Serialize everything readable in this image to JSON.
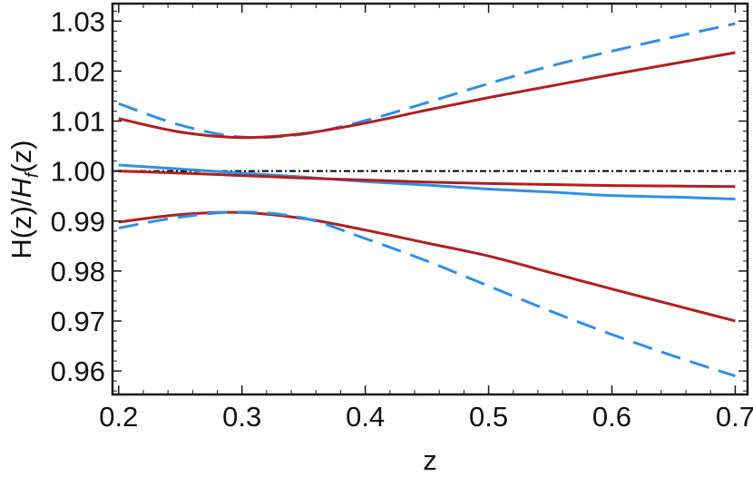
{
  "chart_data": {
    "type": "line",
    "xlabel": "z",
    "ylabel": {
      "prefix": "H(z)/",
      "italic": "H",
      "sub": "f",
      "suffix": "(z)"
    },
    "xlim": [
      0.195,
      0.71
    ],
    "ylim": [
      0.9553,
      1.0335
    ],
    "xticks": [
      0.2,
      0.3,
      0.4,
      0.5,
      0.6,
      0.7
    ],
    "xtick_labels": [
      "0.2",
      "0.3",
      "0.4",
      "0.5",
      "0.6",
      "0.7"
    ],
    "yticks": [
      0.96,
      0.97,
      0.98,
      0.99,
      1.0,
      1.01,
      1.02,
      1.03
    ],
    "ytick_labels": [
      "0.96",
      "0.97",
      "0.98",
      "0.99",
      "1.00",
      "1.01",
      "1.02",
      "1.03"
    ],
    "grid": false,
    "reference_line": {
      "y": 1.0,
      "color": "#000000",
      "style": "dashdot"
    },
    "series": [
      {
        "color": "#2f8fe8",
        "style": "dashed",
        "x": [
          0.2,
          0.25,
          0.3,
          0.35,
          0.4,
          0.45,
          0.5,
          0.55,
          0.6,
          0.65,
          0.7
        ],
        "y": [
          1.0135,
          1.0092,
          1.0068,
          1.0074,
          1.0101,
          1.0137,
          1.0175,
          1.021,
          1.024,
          1.0268,
          1.0295
        ]
      },
      {
        "color": "#b11f1f",
        "style": "solid",
        "x": [
          0.2,
          0.25,
          0.3,
          0.35,
          0.4,
          0.45,
          0.5,
          0.55,
          0.6,
          0.65,
          0.7
        ],
        "y": [
          1.0105,
          1.0078,
          1.0067,
          1.0075,
          1.0096,
          1.0122,
          1.0147,
          1.017,
          1.0193,
          1.0215,
          1.0237
        ]
      },
      {
        "color": "#2f8fe8",
        "style": "solid",
        "x": [
          0.2,
          0.25,
          0.3,
          0.35,
          0.4,
          0.45,
          0.5,
          0.55,
          0.6,
          0.65,
          0.7
        ],
        "y": [
          1.0012,
          1.0004,
          0.9996,
          0.9988,
          0.9979,
          0.9972,
          0.9964,
          0.9958,
          0.9951,
          0.9948,
          0.9944
        ]
      },
      {
        "color": "#b11f1f",
        "style": "solid",
        "x": [
          0.2,
          0.25,
          0.3,
          0.35,
          0.4,
          0.45,
          0.5,
          0.55,
          0.6,
          0.65,
          0.7
        ],
        "y": [
          1.0,
          0.9996,
          0.9991,
          0.9986,
          0.9982,
          0.9978,
          0.9975,
          0.9973,
          0.9971,
          0.997,
          0.9969
        ]
      },
      {
        "color": "#b11f1f",
        "style": "solid",
        "x": [
          0.2,
          0.25,
          0.3,
          0.35,
          0.4,
          0.45,
          0.5,
          0.55,
          0.6,
          0.65,
          0.7
        ],
        "y": [
          0.9898,
          0.9913,
          0.9917,
          0.9905,
          0.9882,
          0.9856,
          0.983,
          0.9797,
          0.9764,
          0.9732,
          0.97
        ]
      },
      {
        "color": "#2f8fe8",
        "style": "dashed",
        "x": [
          0.2,
          0.25,
          0.3,
          0.35,
          0.4,
          0.45,
          0.5,
          0.55,
          0.6,
          0.65,
          0.7
        ],
        "y": [
          0.9886,
          0.9908,
          0.9918,
          0.9906,
          0.9865,
          0.982,
          0.977,
          0.972,
          0.9673,
          0.963,
          0.959
        ]
      }
    ]
  }
}
